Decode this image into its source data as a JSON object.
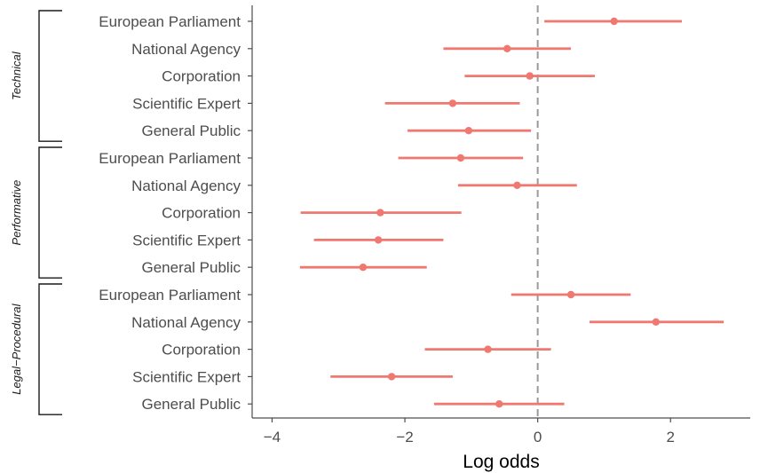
{
  "chart_data": {
    "type": "scatter",
    "xlabel": "Log odds",
    "ylabel": "",
    "xlim": [
      -4.3,
      3.2
    ],
    "x_ticks": [
      {
        "value": -4,
        "label": "−4"
      },
      {
        "value": -2,
        "label": "−2"
      },
      {
        "value": 0,
        "label": "0"
      },
      {
        "value": 2,
        "label": "2"
      }
    ],
    "reference_line": {
      "x": 0,
      "style": "dashed",
      "color": "#999999"
    },
    "grid": false,
    "color": "#EF7970",
    "groups": [
      {
        "name": "Technical",
        "items": [
          {
            "label": "European Parliament",
            "estimate": 1.15,
            "low": 0.1,
            "high": 2.17
          },
          {
            "label": "National Agency",
            "estimate": -0.46,
            "low": -1.42,
            "high": 0.5
          },
          {
            "label": "Corporation",
            "estimate": -0.12,
            "low": -1.1,
            "high": 0.86
          },
          {
            "label": "Scientific Expert",
            "estimate": -1.28,
            "low": -2.3,
            "high": -0.27
          },
          {
            "label": "General Public",
            "estimate": -1.04,
            "low": -1.96,
            "high": -0.1
          }
        ]
      },
      {
        "name": "Performative",
        "items": [
          {
            "label": "European Parliament",
            "estimate": -1.16,
            "low": -2.1,
            "high": -0.22
          },
          {
            "label": "National Agency",
            "estimate": -0.31,
            "low": -1.2,
            "high": 0.59
          },
          {
            "label": "Corporation",
            "estimate": -2.37,
            "low": -3.57,
            "high": -1.15
          },
          {
            "label": "Scientific Expert",
            "estimate": -2.4,
            "low": -3.37,
            "high": -1.42
          },
          {
            "label": "General Public",
            "estimate": -2.63,
            "low": -3.58,
            "high": -1.67
          }
        ]
      },
      {
        "name": "Legal−Procedural",
        "items": [
          {
            "label": "European Parliament",
            "estimate": 0.5,
            "low": -0.4,
            "high": 1.4
          },
          {
            "label": "National Agency",
            "estimate": 1.78,
            "low": 0.78,
            "high": 2.8
          },
          {
            "label": "Corporation",
            "estimate": -0.75,
            "low": -1.7,
            "high": 0.2
          },
          {
            "label": "Scientific Expert",
            "estimate": -2.2,
            "low": -3.12,
            "high": -1.28
          },
          {
            "label": "General Public",
            "estimate": -0.58,
            "low": -1.56,
            "high": 0.4
          }
        ]
      }
    ]
  }
}
